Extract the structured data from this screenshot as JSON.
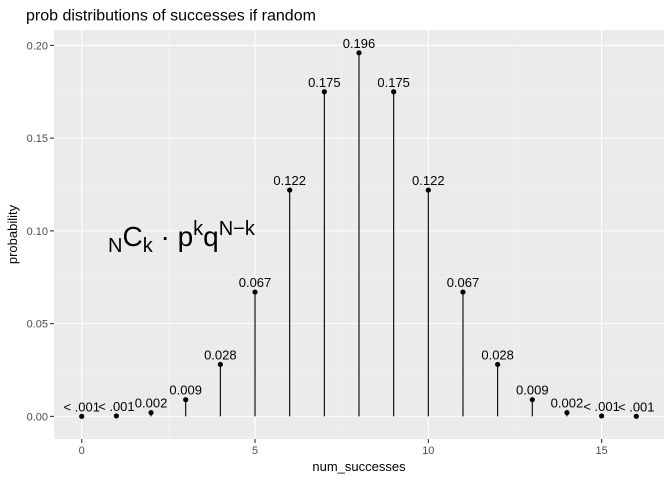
{
  "chart_data": {
    "type": "lollipop",
    "title": "prob distributions of successes if random",
    "xlabel": "num_successes",
    "ylabel": "probability",
    "xlim": [
      -0.8,
      16.8
    ],
    "ylim": [
      -0.0122,
      0.2083
    ],
    "x_ticks": [
      0,
      5,
      10,
      15
    ],
    "y_ticks": [
      0.0,
      0.05,
      0.1,
      0.15,
      0.2
    ],
    "y_tick_labels": [
      "0.00",
      "0.05",
      "0.10",
      "0.15",
      "0.20"
    ],
    "grid": true,
    "x": [
      0,
      1,
      2,
      3,
      4,
      5,
      6,
      7,
      8,
      9,
      10,
      11,
      12,
      13,
      14,
      15,
      16
    ],
    "values": [
      1.53e-05,
      0.000244,
      0.002,
      0.009,
      0.028,
      0.067,
      0.122,
      0.175,
      0.196,
      0.175,
      0.122,
      0.067,
      0.028,
      0.009,
      0.002,
      0.000244,
      1.53e-05
    ],
    "labels": [
      "< .001",
      "< .001",
      "0.002",
      "0.009",
      "0.028",
      "0.067",
      "0.122",
      "0.175",
      "0.196",
      "0.175",
      "0.122",
      "0.067",
      "0.028",
      "0.009",
      "0.002",
      "< .001",
      "< .001"
    ],
    "annotation": {
      "text": "NCk · pkqN−k",
      "parts": [
        {
          "text": "N",
          "shift": "sub"
        },
        {
          "text": "C",
          "shift": "base"
        },
        {
          "text": "k",
          "shift": "sub"
        },
        {
          "text": " · p",
          "shift": "base"
        },
        {
          "text": "k",
          "shift": "sup"
        },
        {
          "text": "q",
          "shift": "base"
        },
        {
          "text": "N−k",
          "shift": "sup"
        }
      ]
    },
    "colors": {
      "panel": "#ebebeb",
      "grid_major": "#ffffff",
      "grid_minor": "#f5f5f5",
      "mark": "#000000",
      "tick": "#333333"
    }
  }
}
